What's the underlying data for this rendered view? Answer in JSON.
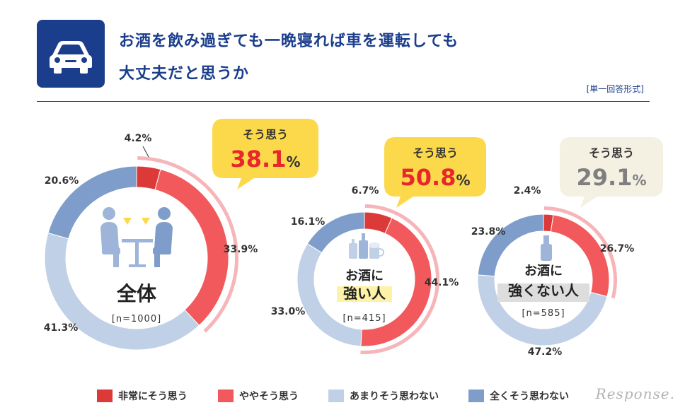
{
  "header": {
    "title_line1": "お酒を飲み過ぎても一晩寝れば車を運転しても",
    "title_line2": "大丈夫だと思うか",
    "answer_format": "[単一回答形式]",
    "icon": "car-icon"
  },
  "colors": {
    "strongly_agree": "#dc3a39",
    "somewhat_agree": "#f2595c",
    "not_really": "#c0d0e6",
    "not_at_all": "#7e9dcb",
    "agree_arc": "#f6b5b8",
    "callout_yellow": "#fcd94b",
    "callout_beige": "#f4f0e2",
    "callout_red": "#e8262c",
    "callout_gray": "#7f7f7f",
    "highlight_yellow": "#fdf2a8",
    "highlight_gray": "#dddddd"
  },
  "legend": [
    {
      "label": "非常にそう思う",
      "color_key": "strongly_agree"
    },
    {
      "label": "ややそう思う",
      "color_key": "somewhat_agree"
    },
    {
      "label": "あまりそう思わない",
      "color_key": "not_really"
    },
    {
      "label": "全くそう思わない",
      "color_key": "not_at_all"
    }
  ],
  "brand": "Response.",
  "chart_data": [
    {
      "type": "pie",
      "center_title": "全体",
      "n_label": "[n=1000]",
      "center_icon": "drinking-people-icon",
      "categories": [
        "非常にそう思う",
        "ややそう思う",
        "あまりそう思わない",
        "全くそう思わない"
      ],
      "values": [
        4.2,
        33.9,
        41.3,
        20.6
      ],
      "labels": [
        "4.2%",
        "33.9%",
        "41.3%",
        "20.6%"
      ],
      "callout": {
        "label": "そう思う",
        "value": "38.1",
        "unit": "%",
        "style": "yellow"
      }
    },
    {
      "type": "pie",
      "center_title_line1": "お酒に",
      "center_title_line2": "強い人",
      "n_label": "[n=415]",
      "center_icon": "bottles-icon",
      "categories": [
        "非常にそう思う",
        "ややそう思う",
        "あまりそう思わない",
        "全くそう思わない"
      ],
      "values": [
        6.7,
        44.1,
        33.0,
        16.1
      ],
      "labels": [
        "6.7%",
        "44.1%",
        "33.0%",
        "16.1%"
      ],
      "callout": {
        "label": "そう思う",
        "value": "50.8",
        "unit": "%",
        "style": "yellow"
      }
    },
    {
      "type": "pie",
      "center_title_line1": "お酒に",
      "center_title_line2": "強くない人",
      "n_label": "[n=585]",
      "center_icon": "bottle-icon",
      "categories": [
        "非常にそう思う",
        "ややそう思う",
        "あまりそう思わない",
        "全くそう思わない"
      ],
      "values": [
        2.4,
        26.7,
        47.2,
        23.8
      ],
      "labels": [
        "2.4%",
        "26.7%",
        "47.2%",
        "23.8%"
      ],
      "callout": {
        "label": "そう思う",
        "value": "29.1",
        "unit": "%",
        "style": "beige"
      }
    }
  ]
}
